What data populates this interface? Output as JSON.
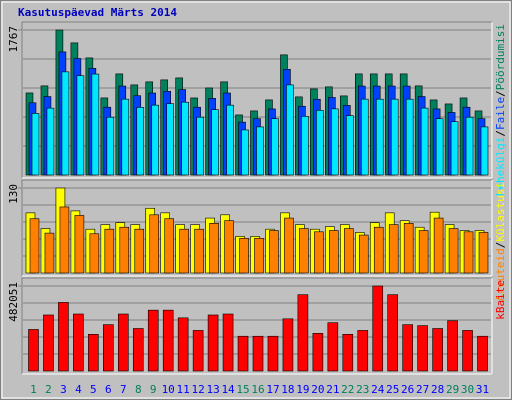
{
  "title": "Kasutuspäevad Märts 2014",
  "legend_separator": "/",
  "chart_data": [
    {
      "type": "bar",
      "ylim": [
        0,
        1767
      ],
      "yticks": [
        1767
      ],
      "grid": true,
      "series": [
        {
          "name": "Pöördumisi",
          "color": "#00805c",
          "values": [
            1000,
            1086,
            1767,
            1610,
            1427,
            939,
            1232,
            1098,
            1135,
            1159,
            1183,
            939,
            1061,
            1135,
            732,
            781,
            915,
            1464,
            952,
            1049,
            1074,
            964,
            1232,
            1232,
            1232,
            1232,
            1086,
            915,
            866,
            939,
            781
          ]
        },
        {
          "name": "Faile",
          "color": "#0040ff",
          "values": [
            880,
            956,
            1500,
            1420,
            1300,
            826,
            1084,
            966,
            999,
            1020,
            1041,
            826,
            934,
            999,
            644,
            687,
            805,
            1288,
            838,
            923,
            945,
            848,
            1084,
            1084,
            1084,
            1084,
            956,
            805,
            762,
            826,
            687
          ]
        },
        {
          "name": "Lehekülgi",
          "color": "#00e8ff",
          "values": [
            750,
            815,
            1257,
            1210,
            1230,
            704,
            924,
            824,
            851,
            869,
            887,
            704,
            796,
            851,
            549,
            586,
            686,
            1098,
            714,
            787,
            806,
            723,
            924,
            924,
            924,
            924,
            815,
            686,
            650,
            704,
            586
          ]
        }
      ]
    },
    {
      "type": "bar",
      "ylim": [
        0,
        130
      ],
      "yticks": [
        130
      ],
      "grid": true,
      "series": [
        {
          "name": "Külastusi",
          "color": "#ffff00",
          "values": [
            92,
            68,
            130,
            95,
            67,
            74,
            77,
            74,
            99,
            92,
            74,
            74,
            84,
            89,
            56,
            56,
            67,
            92,
            74,
            67,
            71,
            74,
            62,
            77,
            92,
            80,
            70,
            93,
            74,
            65,
            65
          ]
        },
        {
          "name": "Arvuteid",
          "color": "#ff8000",
          "values": [
            83,
            61,
            101,
            88,
            60,
            67,
            70,
            67,
            89,
            83,
            67,
            67,
            76,
            80,
            53,
            53,
            65,
            84,
            68,
            63,
            65,
            68,
            58,
            70,
            74,
            76,
            65,
            84,
            68,
            63,
            62
          ]
        }
      ]
    },
    {
      "type": "bar",
      "ylim": [
        0,
        482051
      ],
      "yticks": [
        482051
      ],
      "grid": true,
      "categories": [
        "1",
        "2",
        "3",
        "4",
        "5",
        "6",
        "7",
        "8",
        "9",
        "10",
        "11",
        "12",
        "13",
        "14",
        "15",
        "16",
        "17",
        "18",
        "19",
        "20",
        "21",
        "22",
        "23",
        "24",
        "25",
        "26",
        "27",
        "28",
        "29",
        "30",
        "31"
      ],
      "category_colors": [
        "#00805c",
        "#00805c",
        "#0000ff",
        "#0000ff",
        "#0000ff",
        "#0000ff",
        "#0000ff",
        "#00805c",
        "#00805c",
        "#0000ff",
        "#0000ff",
        "#0000ff",
        "#0000ff",
        "#0000ff",
        "#00805c",
        "#00805c",
        "#0000ff",
        "#0000ff",
        "#0000ff",
        "#0000ff",
        "#0000ff",
        "#00805c",
        "#00805c",
        "#0000ff",
        "#0000ff",
        "#0000ff",
        "#0000ff",
        "#0000ff",
        "#00805c",
        "#00805c",
        "#0000ff"
      ],
      "series": [
        {
          "name": "kBaite",
          "color": "#ff0000",
          "values": [
            235554,
            317724,
            388938,
            323202,
            208164,
            262944,
            323202,
            241032,
            345114,
            345114,
            301290,
            230076,
            317724,
            323202,
            197208,
            197208,
            197208,
            295812,
            432762,
            213642,
            273900,
            208164,
            230076,
            482051,
            432762,
            262944,
            257466,
            241032,
            284856,
            230076,
            197208
          ]
        }
      ]
    }
  ]
}
